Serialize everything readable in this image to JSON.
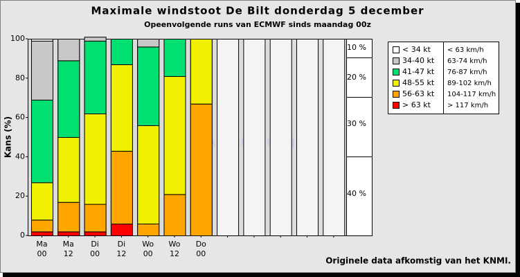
{
  "chart_data": {
    "type": "stacked_bar",
    "title": "Maximale windstoot De Bilt donderdag 5 december",
    "subtitle": "Opeenvolgende runs van ECMWF sinds maandag 00z",
    "y_label": "Kans (%)",
    "watermark": "Arend Hengelo",
    "footer": "Originele data afkomstig van het KNMI.",
    "side_labels": [
      "10 %",
      "20 %",
      "30 %",
      "40 %"
    ],
    "categories": [
      [
        "Ma",
        "00"
      ],
      [
        "Ma",
        "12"
      ],
      [
        "Di",
        "00"
      ],
      [
        "Di",
        "12"
      ],
      [
        "Wo",
        "00"
      ],
      [
        "Wo",
        "12"
      ],
      [
        "Do",
        "00"
      ],
      null,
      null,
      null,
      null,
      null
    ],
    "ylim": [
      0,
      100
    ],
    "yticks": [
      0,
      20,
      40,
      60,
      80,
      100
    ],
    "grid": false,
    "series": [
      {
        "name": "< 34 kt",
        "kmh": "< 63 km/h",
        "color": "#ffffff",
        "values": [
          1,
          0,
          0,
          0,
          0,
          0,
          0,
          null,
          null,
          null,
          null,
          null
        ]
      },
      {
        "name": "34-40 kt",
        "kmh": "63-74 km/h",
        "color": "#c8c8c8",
        "values": [
          30,
          11,
          2,
          0,
          4,
          0,
          0,
          null,
          null,
          null,
          null,
          null
        ]
      },
      {
        "name": "41-47 kt",
        "kmh": "76-87 km/h",
        "color": "#00e070",
        "values": [
          42,
          39,
          37,
          13,
          40,
          19,
          0,
          null,
          null,
          null,
          null,
          null
        ]
      },
      {
        "name": "48-55 kt",
        "kmh": "89-102 km/h",
        "color": "#f0f000",
        "values": [
          19,
          33,
          46,
          44,
          50,
          60,
          33,
          null,
          null,
          null,
          null,
          null
        ]
      },
      {
        "name": "56-63 kt",
        "kmh": "104-117 km/h",
        "color": "#ffa500",
        "values": [
          6,
          15,
          14,
          37,
          6,
          21,
          67,
          null,
          null,
          null,
          null,
          null
        ]
      },
      {
        "name": "> 63 kt",
        "kmh": "> 117 km/h",
        "color": "#ff0000",
        "values": [
          2,
          2,
          2,
          6,
          0,
          0,
          0,
          null,
          null,
          null,
          null,
          null
        ]
      }
    ]
  }
}
